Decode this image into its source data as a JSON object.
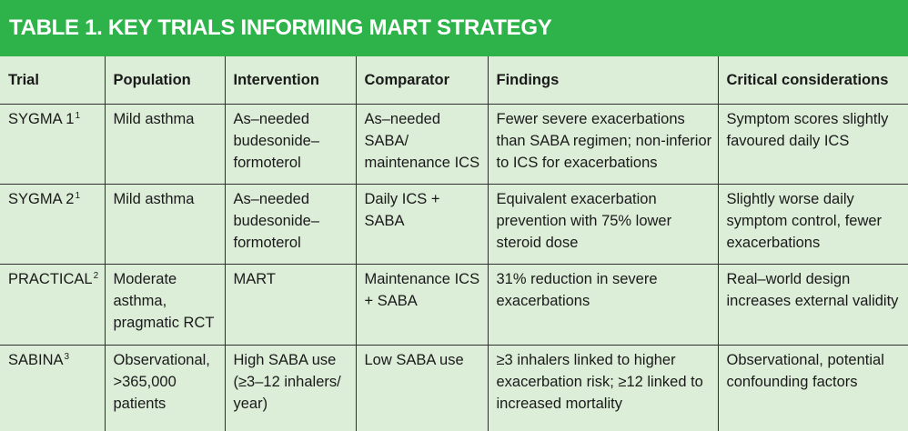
{
  "title": "TABLE 1. KEY TRIALS INFORMING MART STRATEGY",
  "headers": [
    "Trial",
    "Population",
    "Intervention",
    "Comparator",
    "Findings",
    "Critical considerations"
  ],
  "rows": [
    {
      "trial": "SYGMA 1",
      "ref": "1",
      "population": "Mild asthma",
      "intervention": "As–needed budesonide–formoterol",
      "comparator": "As–needed SABA/ maintenance ICS",
      "findings": "Fewer severe exacerbations than SABA regimen; non-inferior to ICS for exacerbations",
      "considerations": "Symptom scores slightly favoured daily ICS"
    },
    {
      "trial": "SYGMA 2",
      "ref": "1",
      "population": "Mild asthma",
      "intervention": "As–needed budesonide–formoterol",
      "comparator": "Daily ICS + SABA",
      "findings": "Equivalent exacerbation prevention with 75% lower steroid dose",
      "considerations": "Slightly worse daily symptom control, fewer exacerbations"
    },
    {
      "trial": "PRACTICAL",
      "ref": "2",
      "population": "Moderate asthma, pragmatic RCT",
      "intervention": "MART",
      "comparator": "Maintenance ICS + SABA",
      "findings": "31% reduction in severe exacerbations",
      "considerations": "Real–world design increases external validity"
    },
    {
      "trial": "SABINA",
      "ref": "3",
      "population": "Observational, >365,000 patients",
      "intervention": "High SABA use (≥3–12 inhalers/ year)",
      "comparator": "Low SABA use",
      "findings": "≥3 inhalers linked to higher exacerbation risk; ≥12 linked to increased mortality",
      "considerations": "Observational, potential confounding factors"
    }
  ],
  "colors": {
    "title_bg": "#2db34a",
    "table_bg": "#dcedd8",
    "border": "#2f2f2f"
  }
}
